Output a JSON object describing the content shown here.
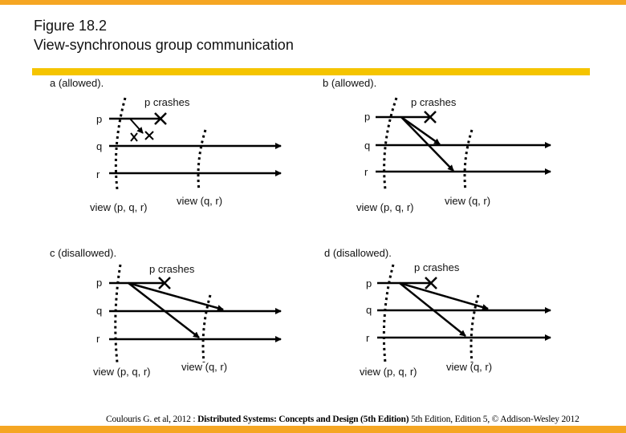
{
  "title": {
    "line1": "Figure 18.2",
    "line2": "View-synchronous group communication"
  },
  "panels": {
    "a": {
      "caption": "a (allowed).",
      "crash_label": "p crashes",
      "view1": "view (p, q, r)",
      "view2": "view (q, r)"
    },
    "b": {
      "caption": "b (allowed).",
      "crash_label": "p crashes",
      "view1": "view (p, q, r)",
      "view2": "view (q, r)"
    },
    "c": {
      "caption": "c (disallowed).",
      "crash_label": "p crashes",
      "view1": "view (p, q, r)",
      "view2": "view (q, r)"
    },
    "d": {
      "caption": "d (disallowed).",
      "crash_label": "p crashes",
      "view1": "view (p, q, r)",
      "view2": "view (q, r)"
    }
  },
  "processes": {
    "p": "p",
    "q": "q",
    "r": "r"
  },
  "footer": {
    "prefix": "Coulouris G. et al, 2012 : ",
    "book": "Distributed Systems: Concepts and Design (5th Edition)",
    "suffix": " 5th Edition, Edition 5, © Addison-Wesley 2012"
  },
  "colors": {
    "accent_orange": "#f5a623",
    "accent_yellow": "#f5c400"
  }
}
